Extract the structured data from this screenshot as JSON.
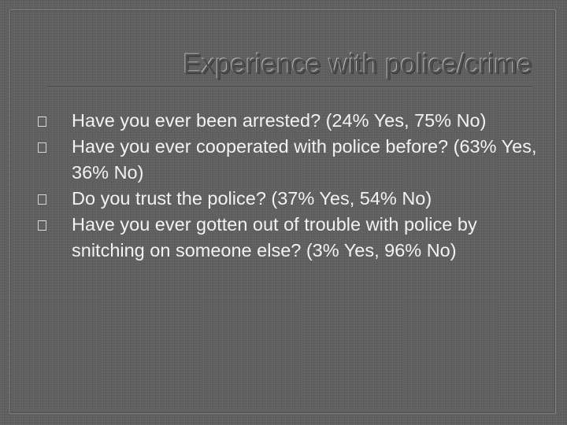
{
  "slide": {
    "title": "Experience with police/crime",
    "bullets": [
      {
        "text": "Have you ever been arrested? (24% Yes, 75% No)"
      },
      {
        "text": "Have you ever cooperated with police before? (63% Yes, 36% No)"
      },
      {
        "text": "Do you trust the police? (37% Yes, 54% No)"
      },
      {
        "text": "Have you ever gotten out of trouble with police by snitching on someone else?  (3% Yes, 96% No)"
      }
    ],
    "bullet_icon": "hollow-square-icon",
    "colors": {
      "background": "#5e5e5e",
      "title": "#4e4e4e",
      "body_text": "#f2f2f2"
    }
  }
}
